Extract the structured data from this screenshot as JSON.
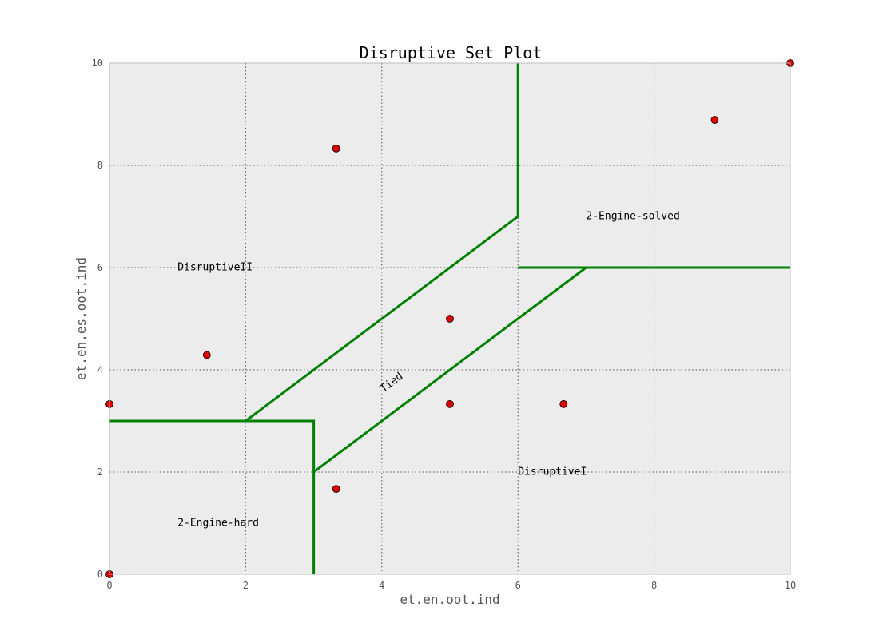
{
  "chart_data": {
    "type": "scatter",
    "title": "Disruptive Set Plot",
    "xlabel": "et.en.oot.ind",
    "ylabel": "et.en.es.oot.ind",
    "xlim": [
      0,
      10
    ],
    "ylim": [
      0,
      10
    ],
    "xticks": [
      "0",
      "2",
      "4",
      "6",
      "8",
      "10"
    ],
    "yticks": [
      "0",
      "2",
      "4",
      "6",
      "8",
      "10"
    ],
    "grid": true,
    "background": "#ececec",
    "points": [
      {
        "x": 0,
        "y": 0
      },
      {
        "x": 0,
        "y": 3.33
      },
      {
        "x": 1.43,
        "y": 4.29
      },
      {
        "x": 3.33,
        "y": 1.67
      },
      {
        "x": 3.33,
        "y": 8.33
      },
      {
        "x": 5,
        "y": 3.33
      },
      {
        "x": 5,
        "y": 5
      },
      {
        "x": 6.67,
        "y": 3.33
      },
      {
        "x": 8.89,
        "y": 8.89
      },
      {
        "x": 10,
        "y": 10
      }
    ],
    "point_color": "#dd0000",
    "boundaries": [
      [
        [
          0,
          3
        ],
        [
          3,
          3
        ],
        [
          3,
          0
        ]
      ],
      [
        [
          2,
          3
        ],
        [
          6,
          7
        ],
        [
          6,
          10
        ]
      ],
      [
        [
          3,
          2
        ],
        [
          7,
          6
        ],
        [
          10,
          6
        ]
      ],
      [
        [
          6,
          6
        ],
        [
          7,
          6
        ]
      ]
    ],
    "boundary_color": "#008000",
    "regions": [
      {
        "label": "DisruptiveII",
        "x": 1,
        "y": 6,
        "rotation": 0
      },
      {
        "label": "2-Engine-solved",
        "x": 7,
        "y": 7,
        "rotation": 0
      },
      {
        "label": "Tied",
        "x": 4,
        "y": 3.6,
        "rotation": -37
      },
      {
        "label": "DisruptiveI",
        "x": 6,
        "y": 2,
        "rotation": 0
      },
      {
        "label": "2-Engine-hard",
        "x": 1,
        "y": 1,
        "rotation": 0
      }
    ]
  }
}
